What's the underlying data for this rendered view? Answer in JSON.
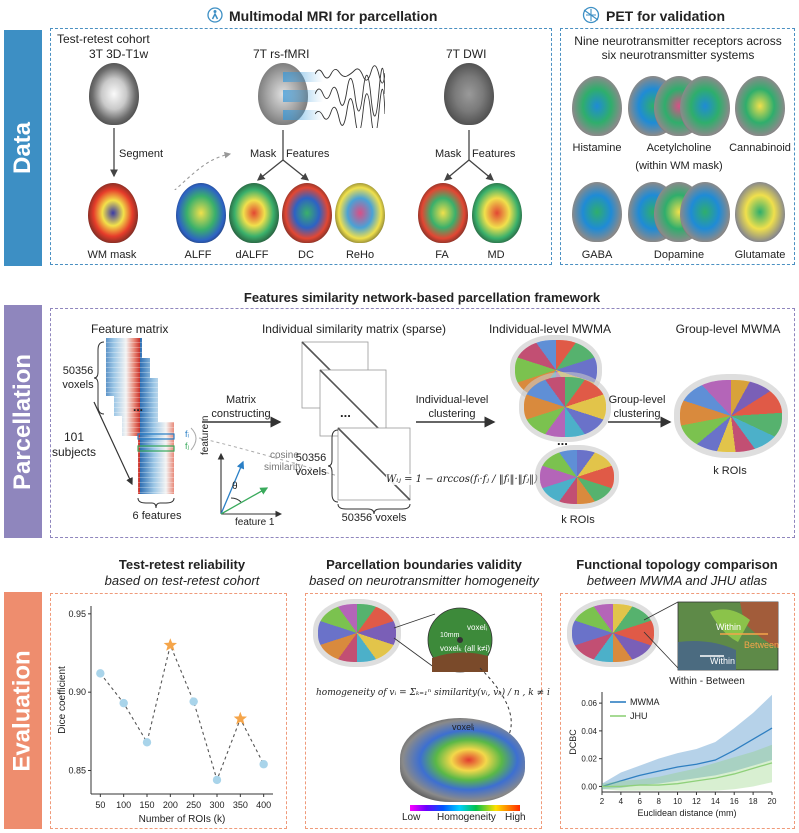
{
  "colors": {
    "data": "#3d8fc4",
    "parcellation": "#8f86bd",
    "evaluation": "#ee8d6e",
    "box_blue": "#4a90c2",
    "box_purple": "#8f86bd",
    "box_orange": "#ef9a7a",
    "star": "#f5a54a",
    "dot": "#a9d4ea",
    "mwma": "#2f7fc1",
    "jhu": "#8fd07a"
  },
  "sections": {
    "data": "Data",
    "parcellation": "Parcellation",
    "evaluation": "Evaluation"
  },
  "data_panel": {
    "header_left": "Multimodal MRI for parcellation",
    "header_right": "PET for validation",
    "cohort": "Test-retest cohort",
    "t1_title": "3T 3D-T1w",
    "fmri_title": "7T rs-fMRI",
    "dwi_title": "7T DWI",
    "segment": "Segment",
    "mask1": "Mask",
    "features1": "Features",
    "mask2": "Mask",
    "features2": "Features",
    "wm_mask": "WM mask",
    "maps": [
      "ALFF",
      "dALFF",
      "DC",
      "ReHo",
      "FA",
      "MD"
    ],
    "pet_title_1": "Nine neurotransmitter receptors across",
    "pet_title_2": "six neurotransmitter systems",
    "pet_row1": [
      "Histamine",
      "Acetylcholine",
      "Cannabinoid"
    ],
    "pet_note": "(within WM mask)",
    "pet_row2": [
      "GABA",
      "Dopamine",
      "Glutamate"
    ]
  },
  "parc_panel": {
    "title": "Features similarity network-based parcellation framework",
    "feature_matrix": "Feature matrix",
    "voxels_num": "50356",
    "voxels_word": "voxels",
    "subjects_num": "101",
    "subjects_word": "subjects",
    "features6": "6 features",
    "fi": "fᵢ",
    "fj": "fⱼ",
    "cosine_1": "cosine",
    "cosine_2": "similarity",
    "theta": "θ",
    "feature_n": "feature n",
    "feature_1": "feature 1",
    "matrix_constructing_1": "Matrix",
    "matrix_constructing_2": "constructing",
    "indiv_sim": "Individual similarity matrix (sparse)",
    "sim_voxels_num": "50356",
    "sim_voxels_word": "voxels",
    "sim_voxels_bottom": "50356 voxels",
    "formula": "Wᵢⱼ = 1 − arccos(fᵢ·fⱼ / ‖fᵢ‖·‖fⱼ‖) / π",
    "ellipsis": "...",
    "indiv_clust_1": "Individual-level",
    "indiv_clust_2": "clustering",
    "indiv_mwma": "Individual-level MWMA",
    "k_rois_1": "k ROIs",
    "group_clust_1": "Group-level",
    "group_clust_2": "clustering",
    "group_mwma": "Group-level MWMA",
    "k_rois_2": "k ROIs"
  },
  "eval_panel": {
    "title1": "Test-retest reliability",
    "sub1": "based on test-retest cohort",
    "title2": "Parcellation boundaries validity",
    "sub2": "based on neurotransmitter homogeneity",
    "title3": "Functional topology comparison",
    "sub3": "between MWMA and JHU atlas",
    "voxel_i": "voxelᵢ",
    "voxel_k": "voxelₖ (all k≠i)",
    "ten_mm": "10mm",
    "homog_formula": "homogeneity of vᵢ = Σₖ₌₁ⁿ similarity(vᵢ, vₖ) / n , k ≠ i",
    "voxel_brain": "voxelᵢ",
    "low": "Low",
    "homogeneity": "Homogeneity",
    "high": "High",
    "within1": "Within",
    "within2": "Within",
    "between": "Between",
    "within_between": "Within - Between"
  },
  "chart_data": [
    {
      "type": "line",
      "title": "Test-retest reliability",
      "xlabel": "Number of ROIs (k)",
      "ylabel": "Dice coefficient",
      "x": [
        50,
        100,
        150,
        200,
        250,
        300,
        350,
        400
      ],
      "y": [
        0.912,
        0.893,
        0.868,
        0.93,
        0.894,
        0.844,
        0.883,
        0.854
      ],
      "highlighted_x": [
        200,
        350
      ],
      "xticks": [
        "50",
        "100",
        "150",
        "200",
        "250",
        "300",
        "350",
        "400"
      ],
      "yticks": [
        "0.85",
        "0.90",
        "0.95"
      ],
      "ylim": [
        0.835,
        0.955
      ],
      "grid": false
    },
    {
      "type": "area",
      "xlabel": "Euclidean distance (mm)",
      "ylabel": "DCBC",
      "xticks": [
        "2",
        "4",
        "6",
        "8",
        "10",
        "12",
        "14",
        "16",
        "18",
        "20"
      ],
      "yticks": [
        "0.00",
        "0.02",
        "0.04",
        "0.06"
      ],
      "ylim": [
        -0.004,
        0.068
      ],
      "legend_position": "top-left",
      "series": [
        {
          "name": "MWMA",
          "x": [
            2,
            4,
            6,
            8,
            10,
            12,
            14,
            16,
            18,
            20
          ],
          "mean": [
            0.0,
            0.004,
            0.008,
            0.011,
            0.014,
            0.016,
            0.019,
            0.026,
            0.034,
            0.042
          ],
          "upper": [
            0.002,
            0.01,
            0.015,
            0.02,
            0.024,
            0.027,
            0.032,
            0.042,
            0.053,
            0.066
          ],
          "lower": [
            -0.002,
            -0.001,
            0.001,
            0.002,
            0.004,
            0.006,
            0.008,
            0.011,
            0.015,
            0.019
          ]
        },
        {
          "name": "JHU",
          "x": [
            2,
            4,
            6,
            8,
            10,
            12,
            14,
            16,
            18,
            20
          ],
          "mean": [
            0.0,
            0.0,
            0.001,
            0.001,
            0.002,
            0.004,
            0.006,
            0.009,
            0.013,
            0.017
          ],
          "upper": [
            0.002,
            0.004,
            0.005,
            0.007,
            0.01,
            0.013,
            0.017,
            0.021,
            0.025,
            0.03
          ],
          "lower": [
            -0.002,
            -0.003,
            -0.003,
            -0.003,
            -0.003,
            -0.003,
            -0.003,
            -0.002,
            0.0,
            0.003
          ]
        }
      ]
    }
  ]
}
